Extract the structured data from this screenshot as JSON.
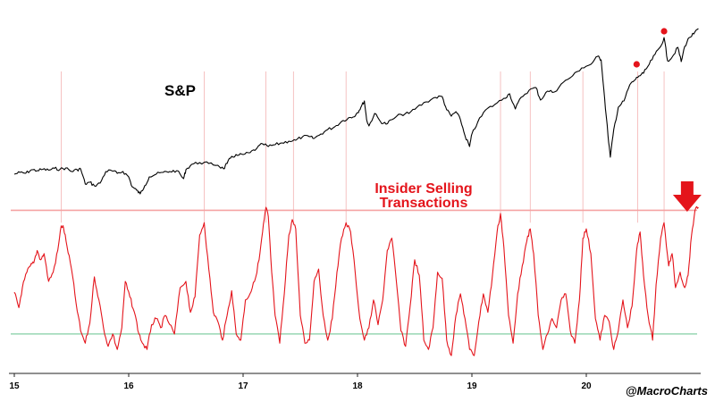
{
  "chart_data": {
    "type": "line",
    "x_axis": {
      "ticks": [
        "15",
        "16",
        "17",
        "18",
        "19",
        "20"
      ],
      "tick_years": [
        2015,
        2016,
        2017,
        2018,
        2019,
        2020
      ],
      "range": [
        2015.0,
        2021.0
      ]
    },
    "series": [
      {
        "name": "S&P",
        "label": "S&P",
        "color": "#000000",
        "range": [
          1800,
          3700
        ],
        "points": [
          [
            2015.0,
            2050
          ],
          [
            2015.05,
            2070
          ],
          [
            2015.1,
            2060
          ],
          [
            2015.15,
            2100
          ],
          [
            2015.2,
            2090
          ],
          [
            2015.25,
            2105
          ],
          [
            2015.3,
            2095
          ],
          [
            2015.35,
            2115
          ],
          [
            2015.4,
            2105
          ],
          [
            2015.45,
            2120
          ],
          [
            2015.5,
            2080
          ],
          [
            2015.55,
            2100
          ],
          [
            2015.58,
            2110
          ],
          [
            2015.62,
            1940
          ],
          [
            2015.66,
            1960
          ],
          [
            2015.7,
            1920
          ],
          [
            2015.75,
            1950
          ],
          [
            2015.8,
            2080
          ],
          [
            2015.85,
            2090
          ],
          [
            2015.9,
            2060
          ],
          [
            2015.95,
            2080
          ],
          [
            2016.0,
            2020
          ],
          [
            2016.03,
            1910
          ],
          [
            2016.07,
            1870
          ],
          [
            2016.1,
            1830
          ],
          [
            2016.14,
            1920
          ],
          [
            2016.18,
            2020
          ],
          [
            2016.24,
            2050
          ],
          [
            2016.3,
            2070
          ],
          [
            2016.36,
            2080
          ],
          [
            2016.42,
            2090
          ],
          [
            2016.48,
            2000
          ],
          [
            2016.5,
            2100
          ],
          [
            2016.55,
            2160
          ],
          [
            2016.62,
            2180
          ],
          [
            2016.7,
            2170
          ],
          [
            2016.78,
            2150
          ],
          [
            2016.83,
            2110
          ],
          [
            2016.86,
            2170
          ],
          [
            2016.9,
            2250
          ],
          [
            2016.95,
            2260
          ],
          [
            2017.0,
            2270
          ],
          [
            2017.06,
            2290
          ],
          [
            2017.12,
            2340
          ],
          [
            2017.17,
            2390
          ],
          [
            2017.22,
            2360
          ],
          [
            2017.28,
            2380
          ],
          [
            2017.34,
            2400
          ],
          [
            2017.4,
            2420
          ],
          [
            2017.46,
            2430
          ],
          [
            2017.52,
            2470
          ],
          [
            2017.58,
            2470
          ],
          [
            2017.62,
            2450
          ],
          [
            2017.68,
            2500
          ],
          [
            2017.74,
            2550
          ],
          [
            2017.8,
            2580
          ],
          [
            2017.86,
            2640
          ],
          [
            2017.92,
            2680
          ],
          [
            2017.96,
            2690
          ],
          [
            2018.0,
            2740
          ],
          [
            2018.03,
            2800
          ],
          [
            2018.06,
            2870
          ],
          [
            2018.08,
            2660
          ],
          [
            2018.1,
            2590
          ],
          [
            2018.15,
            2730
          ],
          [
            2018.2,
            2640
          ],
          [
            2018.25,
            2610
          ],
          [
            2018.3,
            2660
          ],
          [
            2018.38,
            2720
          ],
          [
            2018.45,
            2730
          ],
          [
            2018.52,
            2800
          ],
          [
            2018.6,
            2860
          ],
          [
            2018.68,
            2910
          ],
          [
            2018.74,
            2920
          ],
          [
            2018.78,
            2770
          ],
          [
            2018.82,
            2700
          ],
          [
            2018.86,
            2750
          ],
          [
            2018.9,
            2660
          ],
          [
            2018.94,
            2480
          ],
          [
            2018.98,
            2360
          ],
          [
            2019.0,
            2500
          ],
          [
            2019.05,
            2630
          ],
          [
            2019.12,
            2770
          ],
          [
            2019.2,
            2830
          ],
          [
            2019.28,
            2900
          ],
          [
            2019.33,
            2950
          ],
          [
            2019.38,
            2780
          ],
          [
            2019.43,
            2910
          ],
          [
            2019.5,
            2990
          ],
          [
            2019.56,
            3020
          ],
          [
            2019.6,
            2880
          ],
          [
            2019.66,
            2980
          ],
          [
            2019.72,
            2970
          ],
          [
            2019.8,
            3080
          ],
          [
            2019.88,
            3150
          ],
          [
            2019.96,
            3240
          ],
          [
            2020.04,
            3280
          ],
          [
            2020.1,
            3370
          ],
          [
            2020.13,
            3330
          ],
          [
            2020.16,
            2900
          ],
          [
            2020.19,
            2480
          ],
          [
            2020.21,
            2240
          ],
          [
            2020.24,
            2550
          ],
          [
            2020.28,
            2800
          ],
          [
            2020.33,
            2870
          ],
          [
            2020.38,
            3050
          ],
          [
            2020.42,
            3100
          ],
          [
            2020.46,
            3150
          ],
          [
            2020.5,
            3180
          ],
          [
            2020.55,
            3280
          ],
          [
            2020.6,
            3390
          ],
          [
            2020.65,
            3480
          ],
          [
            2020.68,
            3580
          ],
          [
            2020.71,
            3320
          ],
          [
            2020.75,
            3360
          ],
          [
            2020.8,
            3470
          ],
          [
            2020.83,
            3310
          ],
          [
            2020.86,
            3480
          ],
          [
            2020.9,
            3580
          ],
          [
            2020.94,
            3620
          ],
          [
            2020.98,
            3680
          ]
        ],
        "markers": [
          {
            "x": 2020.44,
            "y": 3220
          },
          {
            "x": 2020.68,
            "y": 3590
          }
        ]
      },
      {
        "name": "Insider Selling Transactions",
        "label_lines": [
          "Insider Selling",
          "Transactions"
        ],
        "color": "#e4141b",
        "range": [
          0,
          100
        ],
        "points": [
          [
            2015.0,
            45
          ],
          [
            2015.04,
            35
          ],
          [
            2015.07,
            48
          ],
          [
            2015.11,
            58
          ],
          [
            2015.14,
            62
          ],
          [
            2015.17,
            64
          ],
          [
            2015.2,
            72
          ],
          [
            2015.23,
            66
          ],
          [
            2015.26,
            70
          ],
          [
            2015.3,
            52
          ],
          [
            2015.34,
            58
          ],
          [
            2015.38,
            72
          ],
          [
            2015.41,
            88
          ],
          [
            2015.43,
            87
          ],
          [
            2015.46,
            75
          ],
          [
            2015.5,
            60
          ],
          [
            2015.54,
            38
          ],
          [
            2015.58,
            20
          ],
          [
            2015.62,
            12
          ],
          [
            2015.66,
            25
          ],
          [
            2015.7,
            55
          ],
          [
            2015.74,
            40
          ],
          [
            2015.78,
            22
          ],
          [
            2015.82,
            10
          ],
          [
            2015.86,
            18
          ],
          [
            2015.9,
            8
          ],
          [
            2015.94,
            22
          ],
          [
            2015.97,
            52
          ],
          [
            2016.01,
            42
          ],
          [
            2016.05,
            32
          ],
          [
            2016.09,
            18
          ],
          [
            2016.12,
            12
          ],
          [
            2016.16,
            8
          ],
          [
            2016.2,
            24
          ],
          [
            2016.24,
            28
          ],
          [
            2016.28,
            22
          ],
          [
            2016.32,
            30
          ],
          [
            2016.36,
            24
          ],
          [
            2016.4,
            18
          ],
          [
            2016.45,
            48
          ],
          [
            2016.5,
            52
          ],
          [
            2016.54,
            32
          ],
          [
            2016.58,
            42
          ],
          [
            2016.62,
            82
          ],
          [
            2016.66,
            90
          ],
          [
            2016.7,
            60
          ],
          [
            2016.74,
            32
          ],
          [
            2016.78,
            26
          ],
          [
            2016.82,
            14
          ],
          [
            2016.86,
            30
          ],
          [
            2016.9,
            46
          ],
          [
            2016.94,
            18
          ],
          [
            2016.98,
            14
          ],
          [
            2017.02,
            40
          ],
          [
            2017.06,
            44
          ],
          [
            2017.1,
            52
          ],
          [
            2017.14,
            66
          ],
          [
            2017.17,
            84
          ],
          [
            2017.2,
            100
          ],
          [
            2017.22,
            94
          ],
          [
            2017.25,
            58
          ],
          [
            2017.28,
            30
          ],
          [
            2017.32,
            12
          ],
          [
            2017.36,
            44
          ],
          [
            2017.4,
            82
          ],
          [
            2017.43,
            92
          ],
          [
            2017.46,
            86
          ],
          [
            2017.5,
            30
          ],
          [
            2017.54,
            12
          ],
          [
            2017.58,
            14
          ],
          [
            2017.62,
            52
          ],
          [
            2017.66,
            60
          ],
          [
            2017.7,
            30
          ],
          [
            2017.74,
            14
          ],
          [
            2017.78,
            28
          ],
          [
            2017.82,
            58
          ],
          [
            2017.86,
            80
          ],
          [
            2017.9,
            90
          ],
          [
            2017.94,
            84
          ],
          [
            2017.98,
            58
          ],
          [
            2018.02,
            28
          ],
          [
            2018.06,
            14
          ],
          [
            2018.1,
            22
          ],
          [
            2018.14,
            40
          ],
          [
            2018.18,
            24
          ],
          [
            2018.22,
            40
          ],
          [
            2018.26,
            72
          ],
          [
            2018.3,
            80
          ],
          [
            2018.34,
            52
          ],
          [
            2018.38,
            20
          ],
          [
            2018.42,
            10
          ],
          [
            2018.46,
            36
          ],
          [
            2018.5,
            66
          ],
          [
            2018.54,
            56
          ],
          [
            2018.58,
            14
          ],
          [
            2018.62,
            8
          ],
          [
            2018.66,
            22
          ],
          [
            2018.7,
            58
          ],
          [
            2018.74,
            54
          ],
          [
            2018.78,
            14
          ],
          [
            2018.82,
            4
          ],
          [
            2018.86,
            30
          ],
          [
            2018.9,
            44
          ],
          [
            2018.94,
            28
          ],
          [
            2018.98,
            8
          ],
          [
            2019.02,
            4
          ],
          [
            2019.06,
            26
          ],
          [
            2019.1,
            44
          ],
          [
            2019.14,
            32
          ],
          [
            2019.18,
            56
          ],
          [
            2019.22,
            84
          ],
          [
            2019.25,
            96
          ],
          [
            2019.28,
            74
          ],
          [
            2019.32,
            30
          ],
          [
            2019.36,
            12
          ],
          [
            2019.4,
            44
          ],
          [
            2019.44,
            62
          ],
          [
            2019.48,
            78
          ],
          [
            2019.51,
            86
          ],
          [
            2019.54,
            70
          ],
          [
            2019.58,
            30
          ],
          [
            2019.62,
            8
          ],
          [
            2019.66,
            18
          ],
          [
            2019.7,
            28
          ],
          [
            2019.74,
            22
          ],
          [
            2019.78,
            40
          ],
          [
            2019.82,
            44
          ],
          [
            2019.86,
            20
          ],
          [
            2019.9,
            12
          ],
          [
            2019.94,
            40
          ],
          [
            2019.97,
            80
          ],
          [
            2020.0,
            86
          ],
          [
            2020.04,
            70
          ],
          [
            2020.08,
            28
          ],
          [
            2020.12,
            14
          ],
          [
            2020.16,
            30
          ],
          [
            2020.2,
            26
          ],
          [
            2020.24,
            8
          ],
          [
            2020.28,
            20
          ],
          [
            2020.32,
            40
          ],
          [
            2020.36,
            22
          ],
          [
            2020.4,
            36
          ],
          [
            2020.44,
            72
          ],
          [
            2020.47,
            84
          ],
          [
            2020.5,
            56
          ],
          [
            2020.54,
            30
          ],
          [
            2020.58,
            14
          ],
          [
            2020.61,
            50
          ],
          [
            2020.65,
            80
          ],
          [
            2020.68,
            90
          ],
          [
            2020.72,
            62
          ],
          [
            2020.75,
            70
          ],
          [
            2020.78,
            48
          ],
          [
            2020.82,
            58
          ],
          [
            2020.86,
            48
          ],
          [
            2020.89,
            56
          ],
          [
            2020.92,
            82
          ],
          [
            2020.95,
            98
          ],
          [
            2020.98,
            100
          ]
        ]
      }
    ],
    "reference_lines": {
      "upper": {
        "color": "#f5a3a3",
        "y": 98
      },
      "lower": {
        "color": "#9fd9b9",
        "y": 18
      }
    },
    "guide_lines_years": [
      2015.41,
      2016.66,
      2017.2,
      2017.44,
      2017.9,
      2019.25,
      2019.51,
      2019.97,
      2020.45,
      2020.68
    ],
    "signal_arrow": {
      "x": 2020.96,
      "color": "#e4141b",
      "icon": "down-arrow-icon"
    },
    "credit": "@MacroCharts"
  }
}
